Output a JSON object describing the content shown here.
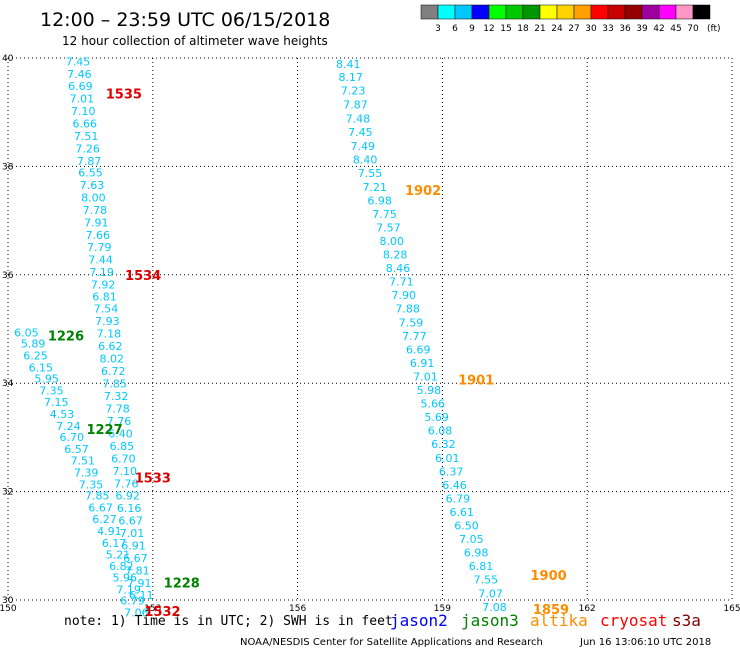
{
  "header": {
    "title": "12:00 – 23:59 UTC 06/15/2018",
    "subtitle": "12 hour collection of altimeter wave heights"
  },
  "legend_scale": {
    "labels": [
      "3",
      "6",
      "9",
      "12",
      "15",
      "18",
      "21",
      "24",
      "27",
      "30",
      "33",
      "36",
      "39",
      "42",
      "45",
      "70"
    ],
    "unit": "(ft)",
    "colors": [
      "#808080",
      "#00ffff",
      "#00c8ff",
      "#0000ff",
      "#00ff00",
      "#00c800",
      "#009600",
      "#ffff00",
      "#ffd200",
      "#ffa000",
      "#ff0000",
      "#c80000",
      "#960000",
      "#a000a0",
      "#ff00ff",
      "#ff96c8",
      "#000000"
    ]
  },
  "footer": {
    "note": "note: 1) Time is in UTC; 2) SWH is in feet",
    "satellites": [
      {
        "name": "jason2",
        "color": "#0000ff"
      },
      {
        "name": "jason3",
        "color": "#008000"
      },
      {
        "name": "altika",
        "color": "#ff8c00"
      },
      {
        "name": "cryosat",
        "color": "#ff0000"
      },
      {
        "name": "s3a",
        "color": "#800000"
      }
    ],
    "credit": "NOAA/NESDIS Center for Satellite Applications and Research",
    "timestamp": "Jun 16 13:06:10 UTC 2018"
  },
  "colors": {
    "wave_text": "#00c8ff",
    "grid": "#000000",
    "cryosat": "#dd0000",
    "jason3": "#008000",
    "altika": "#ff8c00"
  },
  "chart_data": {
    "type": "scatter",
    "xlim": [
      150,
      165
    ],
    "ylim": [
      30,
      40
    ],
    "x_ticks": [
      "150",
      "153",
      "156",
      "159",
      "162",
      "165"
    ],
    "y_ticks": [
      "30",
      "32",
      "34",
      "36",
      "38",
      "40"
    ],
    "grid": true,
    "tracks": [
      {
        "name": "track-a",
        "points": [
          {
            "lon": 151.45,
            "lat": 39.86,
            "v": "7.45"
          },
          {
            "lon": 151.48,
            "lat": 39.63,
            "v": "7.46"
          },
          {
            "lon": 151.5,
            "lat": 39.41,
            "v": "6.69"
          },
          {
            "lon": 151.53,
            "lat": 39.18,
            "v": "7.01"
          },
          {
            "lon": 151.56,
            "lat": 38.95,
            "v": "7.10"
          },
          {
            "lon": 151.59,
            "lat": 38.72,
            "v": "6.66"
          },
          {
            "lon": 151.62,
            "lat": 38.49,
            "v": "7.51"
          },
          {
            "lon": 151.65,
            "lat": 38.26,
            "v": "7.26"
          },
          {
            "lon": 151.68,
            "lat": 38.03,
            "v": "7.87"
          },
          {
            "lon": 151.71,
            "lat": 37.81,
            "v": "6.55"
          },
          {
            "lon": 151.74,
            "lat": 37.58,
            "v": "7.63"
          },
          {
            "lon": 151.77,
            "lat": 37.35,
            "v": "8.00"
          },
          {
            "lon": 151.8,
            "lat": 37.12,
            "v": "7.78"
          },
          {
            "lon": 151.83,
            "lat": 36.89,
            "v": "7.91"
          },
          {
            "lon": 151.86,
            "lat": 36.66,
            "v": "7.66"
          },
          {
            "lon": 151.89,
            "lat": 36.44,
            "v": "7.79"
          },
          {
            "lon": 151.92,
            "lat": 36.21,
            "v": "7.44"
          },
          {
            "lon": 151.94,
            "lat": 35.98,
            "v": "7.19"
          },
          {
            "lon": 151.97,
            "lat": 35.75,
            "v": "7.92"
          },
          {
            "lon": 152.0,
            "lat": 35.53,
            "v": "6.81"
          },
          {
            "lon": 152.03,
            "lat": 35.3,
            "v": "7.54"
          },
          {
            "lon": 152.06,
            "lat": 35.07,
            "v": "7.93"
          },
          {
            "lon": 152.09,
            "lat": 34.84,
            "v": "7.18"
          },
          {
            "lon": 152.12,
            "lat": 34.61,
            "v": "6.62"
          },
          {
            "lon": 152.15,
            "lat": 34.38,
            "v": "8.02"
          },
          {
            "lon": 152.18,
            "lat": 34.15,
            "v": "6.72"
          },
          {
            "lon": 152.21,
            "lat": 33.92,
            "v": "7.85"
          },
          {
            "lon": 152.24,
            "lat": 33.69,
            "v": "7.32"
          },
          {
            "lon": 152.27,
            "lat": 33.46,
            "v": "7.78"
          },
          {
            "lon": 152.3,
            "lat": 33.23,
            "v": "7.76"
          },
          {
            "lon": 152.33,
            "lat": 33.0,
            "v": "6.40"
          },
          {
            "lon": 152.36,
            "lat": 32.77,
            "v": "6.85"
          },
          {
            "lon": 152.39,
            "lat": 32.54,
            "v": "6.70"
          },
          {
            "lon": 152.42,
            "lat": 32.31,
            "v": "7.10"
          },
          {
            "lon": 152.45,
            "lat": 32.08,
            "v": "7.76"
          },
          {
            "lon": 152.48,
            "lat": 31.85,
            "v": "6.92"
          },
          {
            "lon": 152.51,
            "lat": 31.62,
            "v": "6.16"
          },
          {
            "lon": 152.54,
            "lat": 31.39,
            "v": "6.67"
          },
          {
            "lon": 152.57,
            "lat": 31.16,
            "v": "7.01"
          },
          {
            "lon": 152.6,
            "lat": 30.93,
            "v": "6.91"
          },
          {
            "lon": 152.64,
            "lat": 30.7,
            "v": "6.67"
          },
          {
            "lon": 152.68,
            "lat": 30.47,
            "v": "7.81"
          },
          {
            "lon": 152.72,
            "lat": 30.24,
            "v": "7.91"
          },
          {
            "lon": 152.76,
            "lat": 30.02,
            "v": "6.11"
          }
        ]
      },
      {
        "name": "track-b",
        "points": [
          {
            "lon": 150.38,
            "lat": 34.86,
            "v": "6.05"
          },
          {
            "lon": 150.52,
            "lat": 34.66,
            "v": "5.89"
          },
          {
            "lon": 150.57,
            "lat": 34.44,
            "v": "6.25"
          },
          {
            "lon": 150.68,
            "lat": 34.22,
            "v": "6.15"
          },
          {
            "lon": 150.8,
            "lat": 34.01,
            "v": "5.95"
          },
          {
            "lon": 150.9,
            "lat": 33.79,
            "v": "7.35"
          },
          {
            "lon": 151.0,
            "lat": 33.58,
            "v": "7.15"
          },
          {
            "lon": 151.12,
            "lat": 33.36,
            "v": "4.53"
          },
          {
            "lon": 151.25,
            "lat": 33.14,
            "v": "7.24"
          },
          {
            "lon": 151.32,
            "lat": 32.93,
            "v": "6.70"
          },
          {
            "lon": 151.42,
            "lat": 32.71,
            "v": "6.57"
          },
          {
            "lon": 151.55,
            "lat": 32.5,
            "v": "7.51"
          },
          {
            "lon": 151.62,
            "lat": 32.28,
            "v": "7.39"
          },
          {
            "lon": 151.72,
            "lat": 32.06,
            "v": "7.35"
          },
          {
            "lon": 151.85,
            "lat": 31.85,
            "v": "7.85"
          },
          {
            "lon": 151.92,
            "lat": 31.63,
            "v": "6.67"
          },
          {
            "lon": 152.0,
            "lat": 31.42,
            "v": "6.27"
          },
          {
            "lon": 152.1,
            "lat": 31.2,
            "v": "4.91"
          },
          {
            "lon": 152.2,
            "lat": 30.98,
            "v": "6.17"
          },
          {
            "lon": 152.28,
            "lat": 30.77,
            "v": "5.21"
          },
          {
            "lon": 152.35,
            "lat": 30.55,
            "v": "6.82"
          },
          {
            "lon": 152.42,
            "lat": 30.34,
            "v": "5.96"
          },
          {
            "lon": 152.5,
            "lat": 30.12,
            "v": "7.19"
          },
          {
            "lon": 152.58,
            "lat": 29.92,
            "v": "6.79"
          },
          {
            "lon": 152.66,
            "lat": 29.7,
            "v": "7.06"
          }
        ]
      },
      {
        "name": "track-c",
        "points": [
          {
            "lon": 157.05,
            "lat": 39.82,
            "v": "8.41"
          },
          {
            "lon": 157.1,
            "lat": 39.58,
            "v": "8.17"
          },
          {
            "lon": 157.15,
            "lat": 39.33,
            "v": "7.23"
          },
          {
            "lon": 157.2,
            "lat": 39.07,
            "v": "7.87"
          },
          {
            "lon": 157.25,
            "lat": 38.81,
            "v": "7.48"
          },
          {
            "lon": 157.3,
            "lat": 38.56,
            "v": "7.45"
          },
          {
            "lon": 157.35,
            "lat": 38.3,
            "v": "7.49"
          },
          {
            "lon": 157.4,
            "lat": 38.05,
            "v": "8.40"
          },
          {
            "lon": 157.5,
            "lat": 37.8,
            "v": "7.55"
          },
          {
            "lon": 157.6,
            "lat": 37.55,
            "v": "7.21"
          },
          {
            "lon": 157.7,
            "lat": 37.3,
            "v": "6.98"
          },
          {
            "lon": 157.8,
            "lat": 37.05,
            "v": "7.75"
          },
          {
            "lon": 157.88,
            "lat": 36.8,
            "v": "7.57"
          },
          {
            "lon": 157.95,
            "lat": 36.55,
            "v": "8.00"
          },
          {
            "lon": 158.02,
            "lat": 36.3,
            "v": "8.28"
          },
          {
            "lon": 158.08,
            "lat": 36.05,
            "v": "8.46"
          },
          {
            "lon": 158.15,
            "lat": 35.8,
            "v": "7.71"
          },
          {
            "lon": 158.2,
            "lat": 35.55,
            "v": "7.90"
          },
          {
            "lon": 158.28,
            "lat": 35.3,
            "v": "7.88"
          },
          {
            "lon": 158.35,
            "lat": 35.05,
            "v": "7.59"
          },
          {
            "lon": 158.42,
            "lat": 34.8,
            "v": "7.77"
          },
          {
            "lon": 158.5,
            "lat": 34.55,
            "v": "6.69"
          },
          {
            "lon": 158.58,
            "lat": 34.3,
            "v": "6.91"
          },
          {
            "lon": 158.65,
            "lat": 34.05,
            "v": "7.01"
          },
          {
            "lon": 158.72,
            "lat": 33.8,
            "v": "5.98"
          },
          {
            "lon": 158.8,
            "lat": 33.55,
            "v": "5.66"
          },
          {
            "lon": 158.88,
            "lat": 33.3,
            "v": "5.69"
          },
          {
            "lon": 158.95,
            "lat": 33.05,
            "v": "6.08"
          },
          {
            "lon": 159.02,
            "lat": 32.8,
            "v": "6.32"
          },
          {
            "lon": 159.1,
            "lat": 32.55,
            "v": "6.01"
          },
          {
            "lon": 159.18,
            "lat": 32.3,
            "v": "6.37"
          },
          {
            "lon": 159.25,
            "lat": 32.05,
            "v": "6.46"
          },
          {
            "lon": 159.32,
            "lat": 31.8,
            "v": "6.79"
          },
          {
            "lon": 159.4,
            "lat": 31.55,
            "v": "6.61"
          },
          {
            "lon": 159.5,
            "lat": 31.3,
            "v": "6.50"
          },
          {
            "lon": 159.6,
            "lat": 31.05,
            "v": "7.05"
          },
          {
            "lon": 159.7,
            "lat": 30.8,
            "v": "6.98"
          },
          {
            "lon": 159.8,
            "lat": 30.55,
            "v": "6.81"
          },
          {
            "lon": 159.9,
            "lat": 30.3,
            "v": "7.55"
          },
          {
            "lon": 160.0,
            "lat": 30.05,
            "v": "7.07"
          },
          {
            "lon": 160.08,
            "lat": 29.8,
            "v": "7.08"
          }
        ]
      }
    ],
    "time_labels": [
      {
        "text": "1535",
        "lon": 152.4,
        "lat": 39.33,
        "sat": "cryosat"
      },
      {
        "text": "1534",
        "lon": 152.8,
        "lat": 35.98,
        "sat": "cryosat"
      },
      {
        "text": "1533",
        "lon": 153.0,
        "lat": 32.24,
        "sat": "cryosat"
      },
      {
        "text": "1532",
        "lon": 153.2,
        "lat": 29.78,
        "sat": "cryosat"
      },
      {
        "text": "1226",
        "lon": 151.2,
        "lat": 34.86,
        "sat": "jason3"
      },
      {
        "text": "1227",
        "lon": 152.0,
        "lat": 33.14,
        "sat": "jason3"
      },
      {
        "text": "1228",
        "lon": 153.6,
        "lat": 30.3,
        "sat": "jason3"
      },
      {
        "text": "1902",
        "lon": 158.6,
        "lat": 37.55,
        "sat": "altika"
      },
      {
        "text": "1901",
        "lon": 159.7,
        "lat": 34.05,
        "sat": "altika"
      },
      {
        "text": "1900",
        "lon": 161.2,
        "lat": 30.44,
        "sat": "altika"
      },
      {
        "text": "1859",
        "lon": 161.25,
        "lat": 29.82,
        "sat": "altika"
      }
    ]
  }
}
